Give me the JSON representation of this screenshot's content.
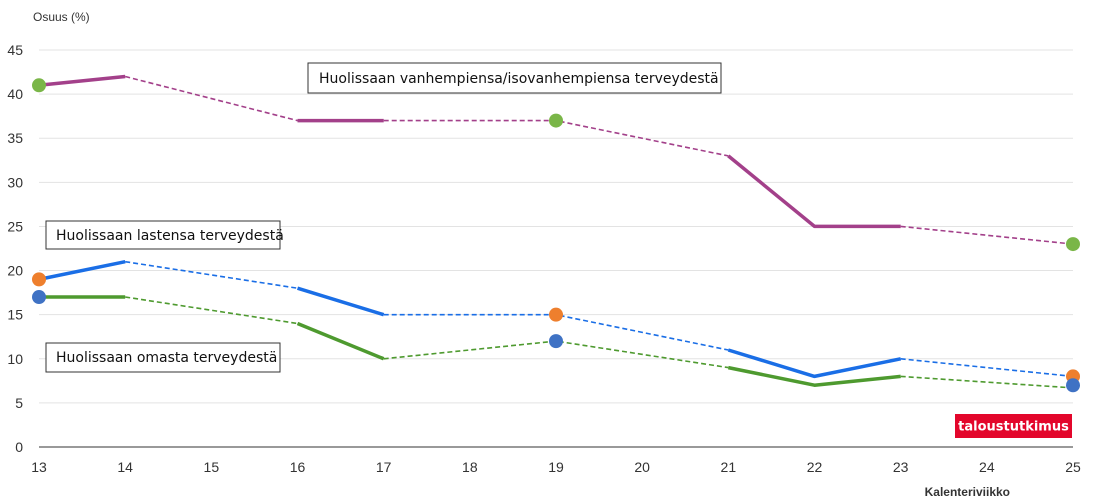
{
  "chart_data": {
    "type": "line",
    "ylabel": "Osuus (%)",
    "xlabel": "Kalenteriviikko",
    "ylim": [
      0,
      45
    ],
    "yticks": [
      0,
      5,
      10,
      15,
      20,
      25,
      30,
      35,
      40,
      45
    ],
    "xlim": [
      13,
      25
    ],
    "xticks": [
      13,
      14,
      15,
      16,
      17,
      18,
      19,
      20,
      21,
      22,
      23,
      24,
      25
    ],
    "grid": true,
    "brand": "taloustutkimus",
    "series": [
      {
        "name": "Huolissaan vanhempiensa/isovanhempiensa terveydestä",
        "color": "#a3408a",
        "segments": [
          {
            "style": "solid",
            "points": [
              [
                13,
                41
              ],
              [
                14,
                42
              ]
            ]
          },
          {
            "style": "dashed",
            "points": [
              [
                14,
                42
              ],
              [
                16,
                37
              ]
            ]
          },
          {
            "style": "solid",
            "points": [
              [
                16,
                37
              ],
              [
                17,
                37
              ]
            ]
          },
          {
            "style": "dashed",
            "points": [
              [
                17,
                37
              ],
              [
                19,
                37
              ],
              [
                21,
                33
              ]
            ]
          },
          {
            "style": "solid",
            "points": [
              [
                21,
                33
              ],
              [
                22,
                25
              ],
              [
                23,
                25
              ]
            ]
          },
          {
            "style": "dashed",
            "points": [
              [
                23,
                25
              ],
              [
                25,
                23
              ]
            ]
          }
        ]
      },
      {
        "name": "Huolissaan lastensa terveydestä",
        "color": "#1a6ee6",
        "segments": [
          {
            "style": "solid",
            "points": [
              [
                13,
                19
              ],
              [
                14,
                21
              ]
            ]
          },
          {
            "style": "dashed",
            "points": [
              [
                14,
                21
              ],
              [
                16,
                18
              ]
            ]
          },
          {
            "style": "solid",
            "points": [
              [
                16,
                18
              ],
              [
                17,
                15
              ]
            ]
          },
          {
            "style": "dashed",
            "points": [
              [
                17,
                15
              ],
              [
                19,
                15
              ],
              [
                21,
                11
              ]
            ]
          },
          {
            "style": "solid",
            "points": [
              [
                21,
                11
              ],
              [
                22,
                8
              ],
              [
                23,
                10
              ]
            ]
          },
          {
            "style": "dashed",
            "points": [
              [
                23,
                10
              ],
              [
                25,
                8
              ]
            ]
          }
        ]
      },
      {
        "name": "Huolissaan omasta terveydestä",
        "color": "#4e9a2f",
        "segments": [
          {
            "style": "solid",
            "points": [
              [
                13,
                17
              ],
              [
                14,
                17
              ]
            ]
          },
          {
            "style": "dashed",
            "points": [
              [
                14,
                17
              ],
              [
                16,
                14
              ]
            ]
          },
          {
            "style": "solid",
            "points": [
              [
                16,
                14
              ],
              [
                17,
                10
              ]
            ]
          },
          {
            "style": "dashed",
            "points": [
              [
                17,
                10
              ],
              [
                19,
                12
              ],
              [
                21,
                9
              ]
            ]
          },
          {
            "style": "solid",
            "points": [
              [
                21,
                9
              ],
              [
                22,
                7
              ],
              [
                23,
                8
              ]
            ]
          },
          {
            "style": "dashed",
            "points": [
              [
                23,
                8
              ],
              [
                25,
                6.7
              ]
            ]
          }
        ]
      }
    ],
    "markers": [
      {
        "x": 13,
        "y": 41,
        "color": "#7ab648"
      },
      {
        "x": 19,
        "y": 37,
        "color": "#7ab648"
      },
      {
        "x": 25,
        "y": 23,
        "color": "#7ab648"
      },
      {
        "x": 13,
        "y": 19,
        "color": "#ee7f2d"
      },
      {
        "x": 19,
        "y": 15,
        "color": "#ee7f2d"
      },
      {
        "x": 25,
        "y": 8,
        "color": "#ee7f2d"
      },
      {
        "x": 13,
        "y": 17,
        "color": "#3f72c4"
      },
      {
        "x": 19,
        "y": 12,
        "color": "#3f72c4"
      },
      {
        "x": 25,
        "y": 7,
        "color": "#3f72c4"
      }
    ]
  }
}
